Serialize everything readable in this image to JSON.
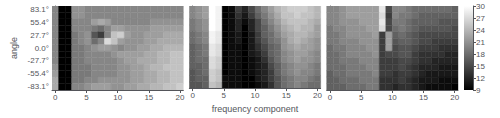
{
  "chart_data": {
    "type": "heatmap",
    "xlabel": "frequency component",
    "ylabel": "angle",
    "x": [
      0,
      1.0526315789473684,
      2.1052631578947367,
      3.1578947368421053,
      4.2105263157894735,
      5.2631578947368425,
      6.315789473684211,
      7.368421052631579,
      8.421052631578947,
      9.473684210526315,
      10.526315789473685,
      11.578947368421053,
      12.631578947368421,
      13.68421052631579,
      14.736842105263158,
      15.789473684210526,
      16.842105263157894,
      17.894736842105264,
      18.94736842105263,
      20
    ],
    "xlim": [
      -0.5263157894736842,
      20.526315789473685
    ],
    "xticks": [
      0,
      5,
      10,
      15,
      20
    ],
    "categories": [
      "83.1°",
      null,
      "55.4°",
      null,
      "27.7°",
      null,
      "0.0°",
      null,
      "-27.7°",
      null,
      "-55.4°",
      null,
      "-83.1°"
    ],
    "color": "gray",
    "colorbar_range": [
      9,
      30
    ],
    "colorbar_ticks": [
      9,
      12,
      15,
      18,
      21,
      24,
      27,
      30
    ],
    "grid": false,
    "panels": [
      {
        "values": [
          [
            20,
            9,
            9,
            21,
            21,
            20,
            20,
            20,
            20,
            20,
            20,
            20,
            20,
            20,
            20,
            20,
            20,
            20,
            20,
            20
          ],
          [
            20,
            9,
            9,
            21,
            21,
            20,
            20,
            20,
            20,
            20,
            20,
            20,
            20,
            20,
            20,
            20,
            20,
            20,
            20,
            20
          ],
          [
            20,
            9,
            9,
            20,
            20,
            20,
            22,
            23,
            22,
            20,
            20,
            20,
            20,
            20,
            20,
            21,
            21,
            21,
            21,
            21
          ],
          [
            20,
            9,
            9,
            20,
            20,
            20,
            19,
            18,
            20,
            22,
            22,
            21,
            21,
            21,
            21,
            22,
            22,
            22,
            22,
            22
          ],
          [
            20,
            9,
            9,
            19,
            20,
            21,
            16,
            14,
            20,
            25,
            26,
            22,
            21,
            21,
            22,
            22,
            22,
            23,
            23,
            23
          ],
          [
            20,
            9,
            9,
            19,
            20,
            21,
            18,
            20,
            27,
            25,
            22,
            21,
            21,
            21,
            22,
            22,
            23,
            23,
            23,
            23
          ],
          [
            20,
            9,
            9,
            19,
            19,
            20,
            21,
            22,
            22,
            21,
            20,
            21,
            21,
            22,
            22,
            23,
            23,
            24,
            24,
            24
          ],
          [
            20,
            9,
            9,
            19,
            19,
            20,
            20,
            20,
            20,
            21,
            22,
            22,
            22,
            22,
            23,
            23,
            24,
            24,
            25,
            25
          ],
          [
            20,
            9,
            9,
            19,
            19,
            20,
            20,
            20,
            20,
            20,
            21,
            22,
            22,
            23,
            23,
            23,
            24,
            24,
            25,
            25
          ],
          [
            21,
            9,
            9,
            19,
            19,
            19,
            20,
            20,
            20,
            20,
            21,
            21,
            22,
            22,
            23,
            24,
            24,
            25,
            25,
            25
          ],
          [
            22,
            9,
            9,
            19,
            19,
            19,
            20,
            20,
            20,
            20,
            21,
            21,
            22,
            22,
            23,
            23,
            24,
            24,
            25,
            25
          ],
          [
            23,
            9,
            9,
            19,
            19,
            20,
            20,
            21,
            21,
            21,
            21,
            21,
            22,
            22,
            23,
            23,
            24,
            24,
            25,
            25
          ],
          [
            23,
            9,
            9,
            20,
            20,
            21,
            22,
            22,
            22,
            21,
            21,
            22,
            22,
            23,
            23,
            24,
            24,
            25,
            25,
            26
          ]
        ]
      },
      {
        "values": [
          [
            20,
            21,
            22,
            30,
            29,
            9,
            10,
            14,
            12,
            15,
            18,
            20,
            22,
            24,
            25,
            26,
            26,
            26,
            25,
            24
          ],
          [
            20,
            21,
            22,
            30,
            29,
            9,
            10,
            13,
            11,
            14,
            17,
            19,
            21,
            23,
            25,
            25,
            26,
            25,
            25,
            24
          ],
          [
            19,
            20,
            21,
            30,
            29,
            9,
            10,
            12,
            10,
            12,
            15,
            18,
            20,
            22,
            24,
            25,
            25,
            25,
            24,
            23
          ],
          [
            19,
            20,
            21,
            30,
            29,
            9,
            10,
            12,
            9,
            12,
            15,
            17,
            19,
            21,
            23,
            24,
            25,
            24,
            24,
            22
          ],
          [
            18,
            19,
            20,
            29,
            28,
            9,
            10,
            11,
            9,
            11,
            14,
            17,
            18,
            20,
            22,
            23,
            24,
            24,
            23,
            22
          ],
          [
            18,
            19,
            20,
            29,
            28,
            9,
            10,
            11,
            9,
            11,
            14,
            16,
            18,
            19,
            21,
            23,
            24,
            23,
            22,
            21
          ],
          [
            17,
            18,
            19,
            28,
            27,
            9,
            10,
            10,
            9,
            11,
            13,
            15,
            17,
            18,
            21,
            22,
            23,
            22,
            22,
            21
          ],
          [
            17,
            18,
            19,
            28,
            27,
            9,
            10,
            10,
            9,
            11,
            12,
            14,
            17,
            18,
            20,
            21,
            22,
            22,
            21,
            20
          ],
          [
            17,
            18,
            18,
            27,
            26,
            9,
            10,
            10,
            9,
            10,
            11,
            13,
            16,
            18,
            20,
            21,
            22,
            21,
            21,
            20
          ],
          [
            17,
            17,
            18,
            27,
            26,
            9,
            10,
            10,
            9,
            10,
            11,
            12,
            15,
            17,
            19,
            20,
            21,
            21,
            20,
            19
          ],
          [
            16,
            17,
            18,
            26,
            25,
            9,
            10,
            10,
            9,
            10,
            11,
            12,
            14,
            17,
            19,
            20,
            21,
            20,
            20,
            19
          ],
          [
            16,
            17,
            17,
            26,
            25,
            10,
            10,
            10,
            9,
            9,
            11,
            12,
            14,
            16,
            18,
            19,
            20,
            20,
            19,
            18
          ],
          [
            16,
            16,
            17,
            25,
            24,
            10,
            10,
            10,
            9,
            9,
            10,
            11,
            13,
            16,
            18,
            19,
            20,
            19,
            18,
            18
          ]
        ]
      },
      {
        "values": [
          [
            20,
            20,
            21,
            22,
            22,
            22,
            22,
            22,
            28,
            15,
            20,
            20,
            19,
            18,
            18,
            18,
            18,
            18,
            18,
            17
          ],
          [
            20,
            20,
            21,
            22,
            22,
            22,
            22,
            22,
            27,
            14,
            20,
            19,
            19,
            18,
            17,
            17,
            17,
            17,
            17,
            17
          ],
          [
            20,
            20,
            21,
            21,
            21,
            22,
            22,
            22,
            28,
            15,
            19,
            19,
            18,
            17,
            17,
            17,
            17,
            16,
            16,
            16
          ],
          [
            19,
            20,
            20,
            21,
            21,
            21,
            22,
            22,
            27,
            15,
            18,
            19,
            18,
            17,
            16,
            16,
            16,
            16,
            16,
            15
          ],
          [
            19,
            19,
            20,
            21,
            21,
            21,
            21,
            22,
            14,
            22,
            17,
            18,
            17,
            16,
            15,
            15,
            15,
            15,
            15,
            15
          ],
          [
            19,
            19,
            20,
            20,
            20,
            21,
            21,
            21,
            14,
            22,
            16,
            17,
            17,
            16,
            15,
            15,
            14,
            14,
            14,
            14
          ],
          [
            18,
            19,
            19,
            20,
            20,
            20,
            21,
            21,
            14,
            22,
            15,
            16,
            16,
            15,
            14,
            14,
            14,
            13,
            13,
            13
          ],
          [
            18,
            18,
            19,
            20,
            20,
            20,
            20,
            21,
            14,
            15,
            15,
            16,
            16,
            14,
            13,
            13,
            13,
            13,
            12,
            12
          ],
          [
            18,
            18,
            19,
            19,
            19,
            20,
            20,
            20,
            14,
            14,
            14,
            15,
            15,
            14,
            13,
            13,
            12,
            12,
            12,
            12
          ],
          [
            18,
            18,
            18,
            19,
            19,
            19,
            20,
            20,
            14,
            14,
            14,
            15,
            14,
            13,
            12,
            12,
            12,
            11,
            11,
            11
          ],
          [
            17,
            18,
            18,
            19,
            19,
            19,
            19,
            20,
            14,
            14,
            13,
            14,
            14,
            13,
            12,
            11,
            11,
            11,
            11,
            11
          ],
          [
            17,
            17,
            18,
            18,
            18,
            19,
            19,
            19,
            13,
            13,
            13,
            14,
            13,
            12,
            11,
            11,
            11,
            10,
            10,
            10
          ],
          [
            17,
            17,
            17,
            18,
            18,
            18,
            19,
            19,
            13,
            13,
            12,
            13,
            13,
            12,
            11,
            10,
            10,
            10,
            10,
            9
          ]
        ]
      }
    ]
  }
}
